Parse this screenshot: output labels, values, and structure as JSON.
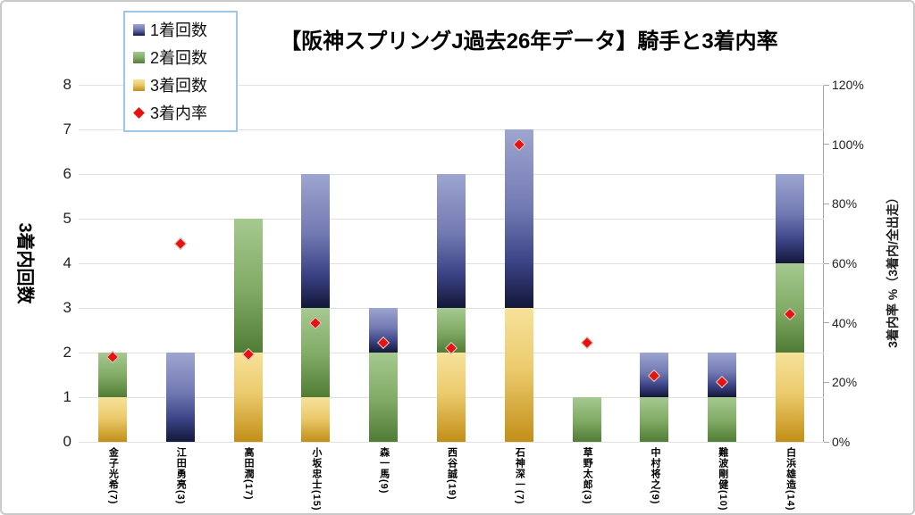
{
  "title": "【阪神スプリングJ過去26年データ】騎手と3着内率",
  "legend": {
    "items": [
      {
        "label": "1着回数",
        "marker": "square",
        "color_key": "blue"
      },
      {
        "label": "2着回数",
        "marker": "square",
        "color_key": "green"
      },
      {
        "label": "3着回数",
        "marker": "square",
        "color_key": "gold"
      },
      {
        "label": "3着内率",
        "marker": "diamond",
        "color_key": "red"
      }
    ]
  },
  "colors": {
    "blue_top": "#9da5d0",
    "blue_bottom": "#131739",
    "green_top": "#a6c990",
    "green_bottom": "#507c36",
    "gold_top": "#f6e29a",
    "gold_bottom": "#c28f17",
    "red": "#e8120e",
    "gridline": "#e0e0e0",
    "axis_line": "#a6a6a6"
  },
  "chart_data": {
    "type": "bar",
    "stacked": true,
    "title": "【阪神スプリングJ過去26年データ】騎手と3着内率",
    "categories": [
      "金子光希(7)",
      "江田勇亮(3)",
      "高田潤(17)",
      "小坂忠士(15)",
      "森一馬(9)",
      "西谷誠(19)",
      "石神深一(7)",
      "草野太郎(3)",
      "中村将之(9)",
      "難波剛健(10)",
      "白浜雄造(14)"
    ],
    "series": [
      {
        "name": "3着回数",
        "color_key": "gold",
        "stack_order": "bottom",
        "values": [
          1,
          0,
          2,
          1,
          0,
          2,
          3,
          0,
          0,
          0,
          2
        ]
      },
      {
        "name": "2着回数",
        "color_key": "green",
        "stack_order": "middle",
        "values": [
          1,
          0,
          3,
          2,
          2,
          1,
          0,
          1,
          1,
          1,
          2
        ]
      },
      {
        "name": "1着回数",
        "color_key": "blue",
        "stack_order": "top",
        "values": [
          0,
          2,
          0,
          3,
          1,
          3,
          4,
          0,
          1,
          1,
          2
        ]
      }
    ],
    "totals": [
      2,
      2,
      5,
      6,
      3,
      6,
      7,
      1,
      2,
      2,
      6
    ],
    "scatter_series": {
      "name": "3着内率",
      "color_key": "red",
      "axis": "right",
      "values_pct": [
        28.6,
        66.7,
        29.4,
        40.0,
        33.3,
        31.6,
        100.0,
        33.3,
        22.2,
        20.0,
        42.9
      ]
    },
    "left_axis": {
      "title": "3着内回数",
      "min": 0,
      "max": 8,
      "tick_step": 1,
      "ticks": [
        "0",
        "1",
        "2",
        "3",
        "4",
        "5",
        "6",
        "7",
        "8"
      ]
    },
    "right_axis": {
      "title": "3着内率 %（3着内/全出走）",
      "min": 0,
      "max": 120,
      "tick_step": 20,
      "ticks": [
        "0%",
        "20%",
        "40%",
        "60%",
        "80%",
        "100%",
        "120%"
      ]
    },
    "grid": true,
    "legend_position": "top-left-overlay"
  }
}
